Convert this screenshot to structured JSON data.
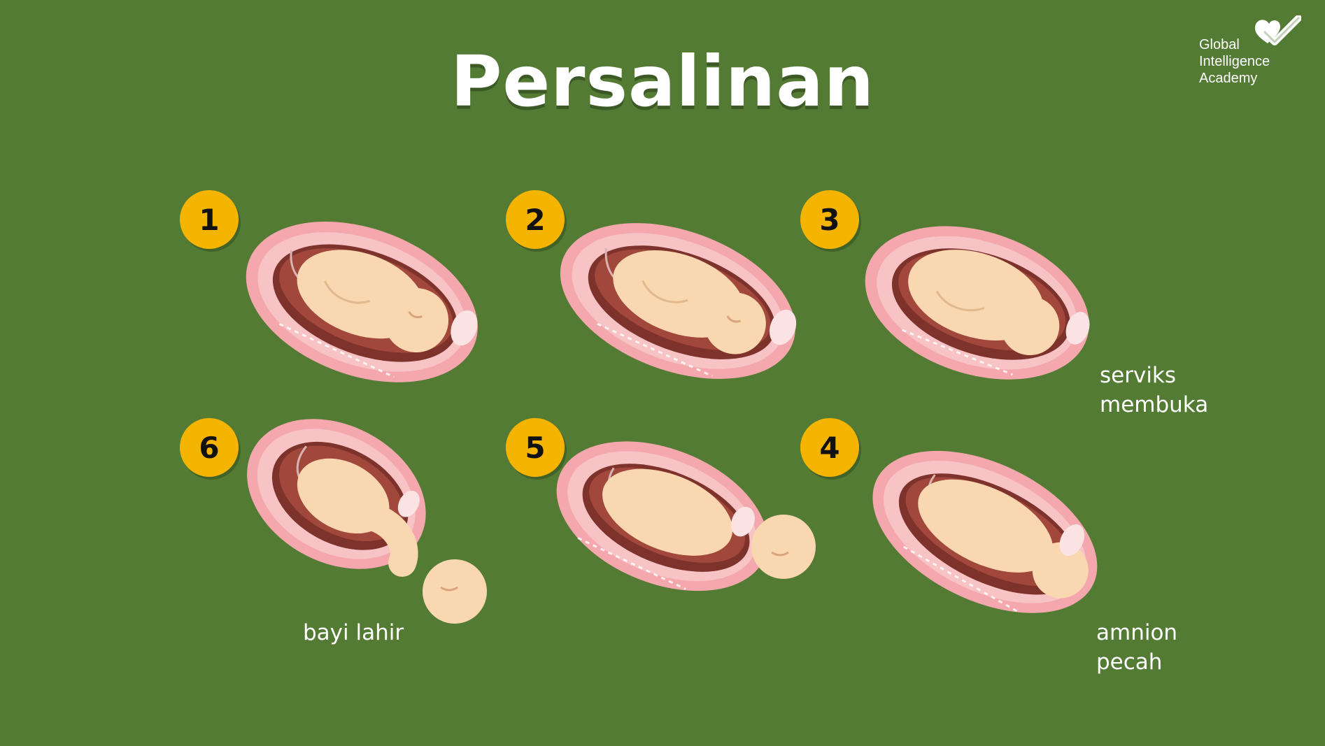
{
  "title": "Persalinan",
  "logo": {
    "icon": "heart-check-icon",
    "lines": [
      "Global",
      "Intelligence",
      "Academy"
    ]
  },
  "stages": [
    {
      "number": "1",
      "label": []
    },
    {
      "number": "2",
      "label": []
    },
    {
      "number": "3",
      "label": [
        "serviks",
        "membuka"
      ]
    },
    {
      "number": "4",
      "label": [
        "amnion",
        "pecah"
      ]
    },
    {
      "number": "5",
      "label": []
    },
    {
      "number": "6",
      "label": [
        "bayi lahir"
      ]
    }
  ],
  "colors": {
    "background": "#537b34",
    "badge": "#f4b400",
    "uterus": "#f2b6b6",
    "uterus_inner": "#7a2e2a",
    "fetus": "#f9d7b0"
  }
}
